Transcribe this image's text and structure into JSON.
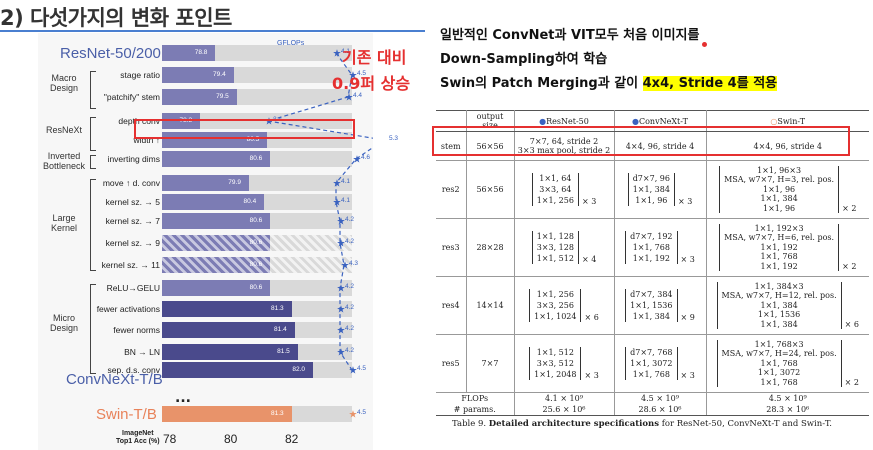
{
  "slide": {
    "title": "2) 다섯가지의 변화 포인트",
    "annotation_line1": "기존 대비",
    "annotation_line2": "0.9퍼 상승",
    "text_line1": "일반적인 ConvNet과 VIT모두 처음 이미지를",
    "text_line2": "Down-Sampling하여 학습",
    "text_line3_prefix": "Swin의 Patch Merging과 같이 ",
    "text_line3_highlight": "4x4, Stride 4를 적용"
  },
  "figure": {
    "title_top": "ResNet-50/200",
    "title_bottom": "ConvNeXt-T/B",
    "title_swin": "Swin-T/B",
    "gflops_label": "GFLOPs",
    "x_ticks": [
      "78",
      "80",
      "82"
    ],
    "x_label_line1": "ImageNet",
    "x_label_line2": "Top1 Acc (%)",
    "ellipsis": "...",
    "groups": [
      {
        "label": "Macro Design"
      },
      {
        "label": "ResNeXt"
      },
      {
        "label": "Inverted Bottleneck"
      },
      {
        "label": "Large Kernel"
      },
      {
        "label": "Micro Design"
      }
    ],
    "rows": [
      {
        "label": "",
        "acc": "78.8",
        "gflops": "4.1"
      },
      {
        "label": "stage ratio",
        "acc": "79.4",
        "gflops": "4.5"
      },
      {
        "label": "\"patchify\" stem",
        "acc": "79.5",
        "gflops": "4.4"
      },
      {
        "label": "depth conv",
        "acc": "78.3",
        "gflops": "2.4"
      },
      {
        "label": "width ↑",
        "acc": "80.5",
        "gflops": "5.3"
      },
      {
        "label": "inverting dims",
        "acc": "80.6",
        "gflops": "4.6"
      },
      {
        "label": "move ↑ d. conv",
        "acc": "79.9",
        "gflops": "4.1"
      },
      {
        "label": "kernel sz. → 5",
        "acc": "80.4",
        "gflops": "4.1"
      },
      {
        "label": "kernel sz. → 7",
        "acc": "80.6",
        "gflops": "4.2"
      },
      {
        "label": "kernel sz. → 9",
        "acc": "80.6",
        "gflops": "4.2"
      },
      {
        "label": "kernel sz. → 11",
        "acc": "80.6",
        "gflops": "4.3"
      },
      {
        "label": "ReLU→GELU",
        "acc": "80.6",
        "gflops": "4.2"
      },
      {
        "label": "fewer activations",
        "acc": "81.3",
        "gflops": "4.2"
      },
      {
        "label": "fewer norms",
        "acc": "81.4",
        "gflops": "4.2"
      },
      {
        "label": "BN → LN",
        "acc": "81.5",
        "gflops": "4.2"
      },
      {
        "label": "sep. d.s. conv",
        "acc": "82.0",
        "gflops": "4.5"
      },
      {
        "label": "",
        "acc": "81.3",
        "gflops": "4.5"
      }
    ]
  },
  "table": {
    "headers": [
      "",
      "output size",
      "ResNet-50",
      "ConvNeXt-T",
      "Swin-T"
    ],
    "stem": {
      "name": "stem",
      "size": "56×56",
      "resnet_line1": "7×7, 64, stride 2",
      "resnet_line2": "3×3 max pool, stride 2",
      "convnext": "4×4, 96, stride 4",
      "swin": "4×4, 96, stride 4"
    },
    "stages": [
      {
        "name": "res2",
        "size": "56×56",
        "resnet": [
          "1×1, 64",
          "3×3, 64",
          "1×1, 256"
        ],
        "resnet_mult": "× 3",
        "convnext": [
          "d7×7, 96",
          "1×1, 384",
          "1×1, 96"
        ],
        "convnext_mult": "× 3",
        "swin": [
          "1×1, 96×3",
          "MSA, w7×7, H=3, rel. pos.",
          "1×1, 96",
          "1×1, 384",
          "1×1, 96"
        ],
        "swin_mult": "× 2"
      },
      {
        "name": "res3",
        "size": "28×28",
        "resnet": [
          "1×1, 128",
          "3×3, 128",
          "1×1, 512"
        ],
        "resnet_mult": "× 4",
        "convnext": [
          "d7×7, 192",
          "1×1, 768",
          "1×1, 192"
        ],
        "convnext_mult": "× 3",
        "swin": [
          "1×1, 192×3",
          "MSA, w7×7, H=6, rel. pos.",
          "1×1, 192",
          "1×1, 768",
          "1×1, 192"
        ],
        "swin_mult": "× 2"
      },
      {
        "name": "res4",
        "size": "14×14",
        "resnet": [
          "1×1, 256",
          "3×3, 256",
          "1×1, 1024"
        ],
        "resnet_mult": "× 6",
        "convnext": [
          "d7×7, 384",
          "1×1, 1536",
          "1×1, 384"
        ],
        "convnext_mult": "× 9",
        "swin": [
          "1×1, 384×3",
          "MSA, w7×7, H=12, rel. pos.",
          "1×1, 384",
          "1×1, 1536",
          "1×1, 384"
        ],
        "swin_mult": "× 6"
      },
      {
        "name": "res5",
        "size": "7×7",
        "resnet": [
          "1×1, 512",
          "3×3, 512",
          "1×1, 2048"
        ],
        "resnet_mult": "× 3",
        "convnext": [
          "d7×7, 768",
          "1×1, 3072",
          "1×1, 768"
        ],
        "convnext_mult": "× 3",
        "swin": [
          "1×1, 768×3",
          "MSA, w7×7, H=24, rel. pos.",
          "1×1, 768",
          "1×1, 3072",
          "1×1, 768"
        ],
        "swin_mult": "× 2"
      }
    ],
    "flops": {
      "label": "FLOPs",
      "resnet": "4.1 × 10⁹",
      "convnext": "4.5 × 10⁹",
      "swin": "4.5 × 10⁹"
    },
    "params": {
      "label": "# params.",
      "resnet": "25.6 × 10⁶",
      "convnext": "28.6 × 10⁶",
      "swin": "28.3 × 10⁶"
    },
    "caption_prefix": "Table 9. ",
    "caption_bold": "Detailed architecture specifications",
    "caption_rest": " for ResNet-50, ConvNeXt-T and Swin-T."
  },
  "colors": {
    "highlight_red": "#e53030",
    "bar_light": "#7c7cb4",
    "bar_dark": "#4a4a8c",
    "bar_swin": "#e8936a",
    "gflops_blue": "#3a62c0"
  }
}
